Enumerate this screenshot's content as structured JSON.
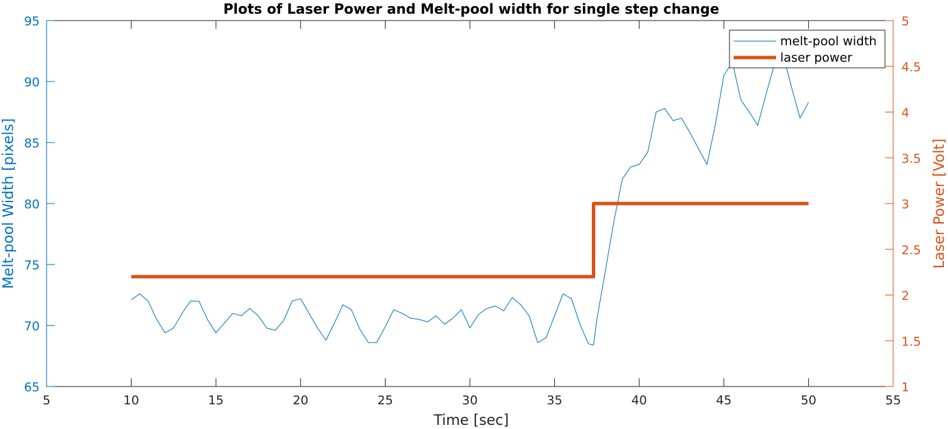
{
  "chart_data": {
    "type": "line",
    "title": "Plots of Laser Power and Melt-pool width for single step change",
    "xlabel": "Time [sec]",
    "ylabel_left": "Melt-pool Width [pixels]",
    "ylabel_right": "Laser Power [Volt]",
    "xlim": [
      5,
      55
    ],
    "ylim_left": [
      65,
      95
    ],
    "ylim_right": [
      1,
      5
    ],
    "x_ticks": [
      "5",
      "10",
      "15",
      "20",
      "25",
      "30",
      "35",
      "40",
      "45",
      "50",
      "55"
    ],
    "y_left_ticks": [
      "65",
      "70",
      "75",
      "80",
      "85",
      "90",
      "95"
    ],
    "y_right_ticks": [
      "1",
      "1.5",
      "2",
      "2.5",
      "3",
      "3.5",
      "4",
      "4.5",
      "5"
    ],
    "legend_position": "top-right",
    "grid": false,
    "series": [
      {
        "name": "melt-pool width",
        "axis": "left",
        "color": "#0072BD",
        "x": [
          10.0,
          10.5,
          11.0,
          11.5,
          12.0,
          12.5,
          13.0,
          13.5,
          14.0,
          14.5,
          15.0,
          15.5,
          16.0,
          16.5,
          17.0,
          17.5,
          18.0,
          18.5,
          19.0,
          19.5,
          20.0,
          20.5,
          21.0,
          21.5,
          22.0,
          22.5,
          23.0,
          23.5,
          24.0,
          24.5,
          25.0,
          25.5,
          26.0,
          26.5,
          27.0,
          27.5,
          28.0,
          28.5,
          29.0,
          29.5,
          30.0,
          30.5,
          31.0,
          31.5,
          32.0,
          32.5,
          33.0,
          33.5,
          34.0,
          34.5,
          35.0,
          35.5,
          36.0,
          36.5,
          37.0,
          37.3,
          37.5,
          38.0,
          38.5,
          39.0,
          39.5,
          40.0,
          40.5,
          41.0,
          41.5,
          42.0,
          42.5,
          43.0,
          43.5,
          44.0,
          44.5,
          45.0,
          45.5,
          46.0,
          46.5,
          47.0,
          47.5,
          48.0,
          48.5,
          49.0,
          49.5,
          50.0
        ],
        "y": [
          72.1,
          72.6,
          72.0,
          70.5,
          69.4,
          69.8,
          71.0,
          72.0,
          72.0,
          70.5,
          69.4,
          70.2,
          71.0,
          70.8,
          71.4,
          70.8,
          69.8,
          69.6,
          70.4,
          72.0,
          72.2,
          71.0,
          69.8,
          68.8,
          70.2,
          71.7,
          71.3,
          69.7,
          68.6,
          68.6,
          69.9,
          71.3,
          71.0,
          70.6,
          70.5,
          70.3,
          70.8,
          70.1,
          70.6,
          71.3,
          69.8,
          70.9,
          71.4,
          71.6,
          71.2,
          72.3,
          71.7,
          70.8,
          68.6,
          69.0,
          70.8,
          72.6,
          72.2,
          70.1,
          68.5,
          68.4,
          70.5,
          74.5,
          78.5,
          82.0,
          83.0,
          83.2,
          84.2,
          87.5,
          87.8,
          86.8,
          87.0,
          85.8,
          84.5,
          83.2,
          86.5,
          90.5,
          91.6,
          88.5,
          87.5,
          86.4,
          89.0,
          91.5,
          92.2,
          89.5,
          87.0,
          88.3
        ]
      },
      {
        "name": "laser power",
        "axis": "right",
        "color": "#D95319",
        "x": [
          10.0,
          37.3,
          37.3,
          50.0
        ],
        "y": [
          2.2,
          2.2,
          3.0,
          3.0
        ]
      }
    ]
  }
}
